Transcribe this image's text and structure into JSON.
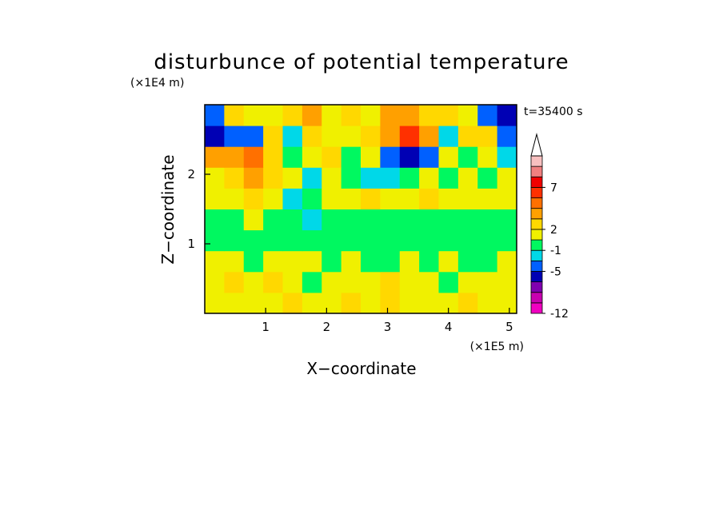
{
  "chart_data": {
    "type": "filled-contour",
    "title": "disturbunce of potential temperature",
    "xlabel": "X−coordinate",
    "ylabel": "Z−coordinate",
    "xunit": "(×1E5 m)",
    "yunit": "(×1E4 m)",
    "annotation": "t=35400 s",
    "xlim": [
      0,
      5.12
    ],
    "ylim": [
      0,
      3
    ],
    "xticks": [
      1,
      2,
      3,
      4,
      5
    ],
    "yticks": [
      1,
      2
    ],
    "x": [
      0.16,
      0.48,
      0.8,
      1.12,
      1.44,
      1.76,
      2.08,
      2.4,
      2.72,
      3.04,
      3.36,
      3.68,
      4.0,
      4.32,
      4.64,
      4.96
    ],
    "y": [
      0.15,
      0.45,
      0.75,
      1.05,
      1.35,
      1.65,
      1.95,
      2.25,
      2.55,
      2.85
    ],
    "z": [
      [
        1.5,
        1.5,
        1.5,
        1.5,
        2.5,
        1.5,
        1.5,
        2.5,
        1.5,
        2.5,
        1.5,
        1.5,
        1.5,
        2.5,
        1.5,
        1.5
      ],
      [
        1.5,
        2.5,
        1.5,
        2.5,
        1.5,
        0,
        1.5,
        1.5,
        1.5,
        2.5,
        1.5,
        1.5,
        0,
        1.5,
        1.5,
        1.5
      ],
      [
        1.5,
        1.5,
        0,
        1.5,
        1.5,
        1.5,
        0,
        1.5,
        0,
        0,
        1.5,
        0,
        1.5,
        0,
        0,
        1.5
      ],
      [
        0,
        0,
        0,
        0,
        0,
        0,
        0,
        0,
        0,
        0,
        0,
        0,
        0,
        0,
        0,
        0
      ],
      [
        0,
        0,
        1.5,
        0,
        0,
        -2,
        0,
        0,
        0,
        0,
        0,
        0,
        0,
        0,
        0,
        0
      ],
      [
        1.5,
        1.5,
        2.5,
        1.5,
        -2,
        0,
        1.5,
        1.5,
        2.5,
        1.5,
        1.5,
        2.5,
        1.5,
        1.5,
        1.5,
        1.5
      ],
      [
        1.5,
        2.5,
        3.5,
        2.5,
        1.5,
        -2,
        1.5,
        0,
        -2,
        -2,
        0,
        1.5,
        0,
        1.5,
        0,
        1.5
      ],
      [
        3.5,
        3.5,
        4.5,
        2.5,
        0,
        1.5,
        2.5,
        0,
        1.5,
        -4,
        -5.5,
        -4,
        1.5,
        0,
        1.5,
        -2
      ],
      [
        -5.5,
        -4,
        -4,
        2.5,
        -2,
        2.5,
        1.5,
        1.5,
        2.5,
        3.5,
        6,
        3.5,
        -2,
        2.5,
        2.5,
        -4
      ],
      [
        -4,
        2.5,
        1.5,
        1.5,
        2.5,
        3.5,
        1.5,
        2.5,
        1.5,
        3.5,
        3.5,
        2.5,
        2.5,
        1.5,
        -4,
        -5.5
      ]
    ],
    "levels": [
      -12,
      -10,
      -8,
      -6,
      -5,
      -3,
      -1,
      1,
      2,
      3,
      4,
      5,
      7,
      9,
      11,
      13
    ],
    "colors": [
      "#f000c0",
      "#c800b0",
      "#8000b0",
      "#0000b4",
      "#0060ff",
      "#00d8e8",
      "#00f860",
      "#f0f000",
      "#ffd800",
      "#ffa000",
      "#ff7000",
      "#ff3000",
      "#f00000",
      "#f08080",
      "#f8c0c0"
    ],
    "colorbar_ticks": [
      -12,
      -5,
      -1,
      2,
      7
    ]
  }
}
